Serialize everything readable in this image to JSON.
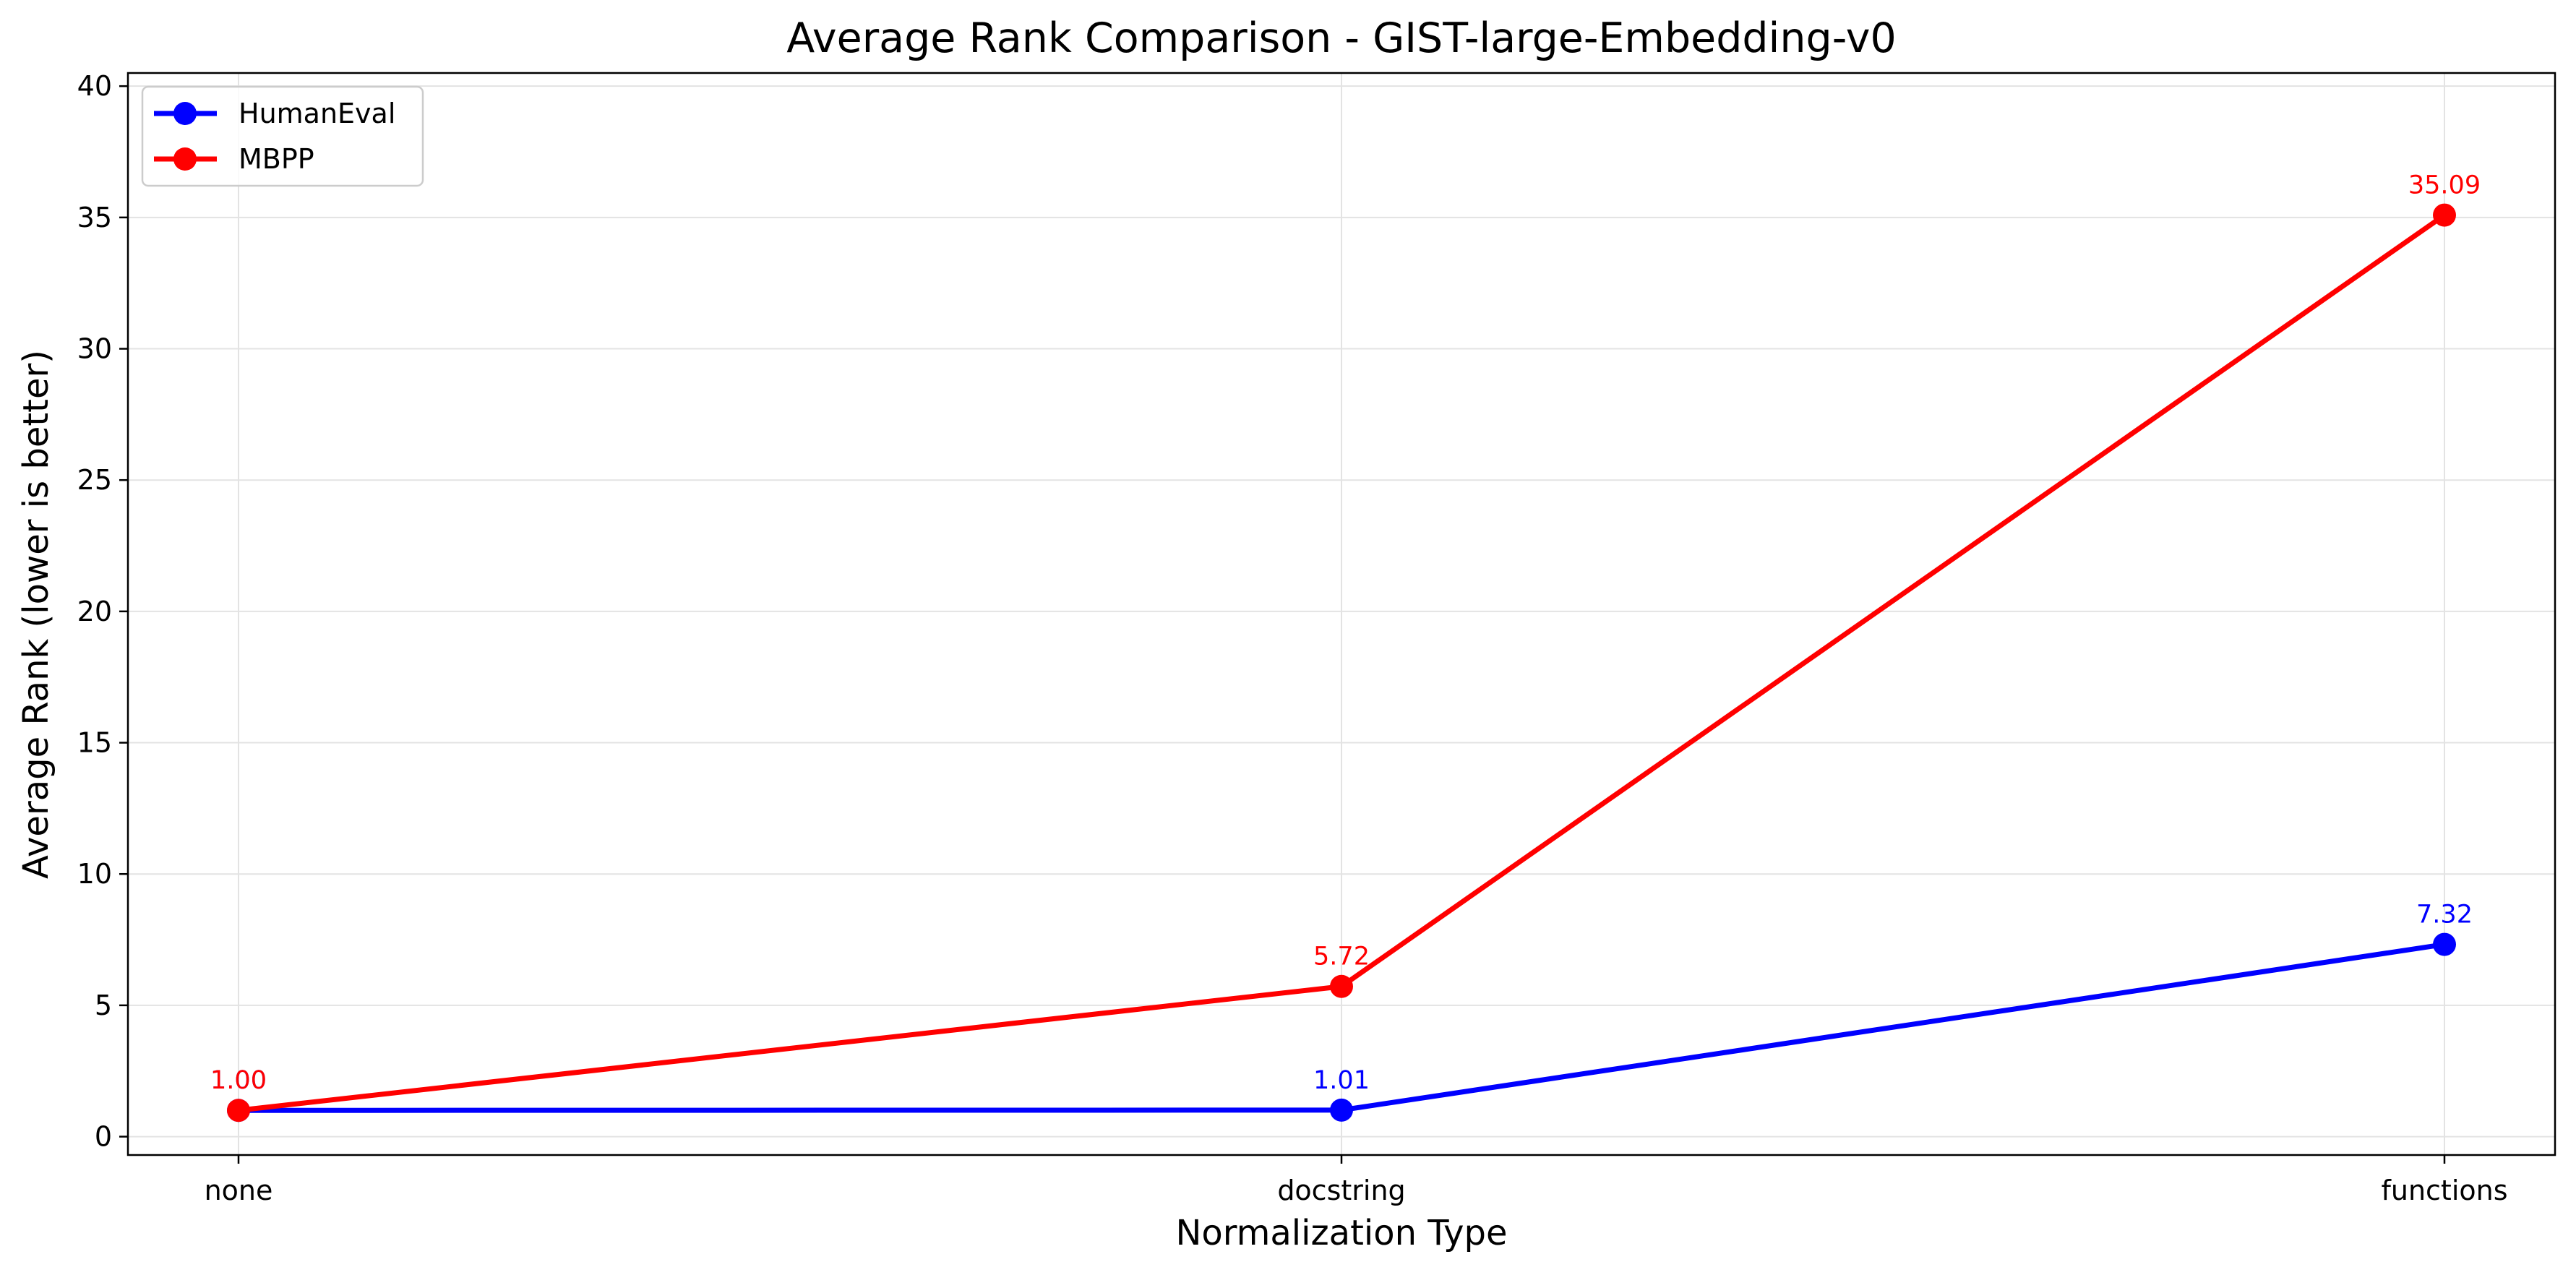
{
  "chart_data": {
    "type": "line",
    "title": "Average Rank Comparison - GIST-large-Embedding-v0",
    "xlabel": "Normalization Type",
    "ylabel": "Average Rank (lower is better)",
    "categories": [
      "none",
      "docstring",
      "functions"
    ],
    "ylim": [
      -0.7,
      40.5
    ],
    "yticks": [
      0,
      5,
      10,
      15,
      20,
      25,
      30,
      35,
      40
    ],
    "grid": true,
    "legend_position": "top-left",
    "series": [
      {
        "name": "HumanEval",
        "color": "#0000ff",
        "values": [
          1.0,
          1.01,
          7.32
        ],
        "labels": [
          "1.00",
          "1.01",
          "7.32"
        ]
      },
      {
        "name": "MBPP",
        "color": "#ff0000",
        "values": [
          1.0,
          5.72,
          35.09
        ],
        "labels": [
          "1.00",
          "5.72",
          "35.09"
        ]
      }
    ]
  }
}
